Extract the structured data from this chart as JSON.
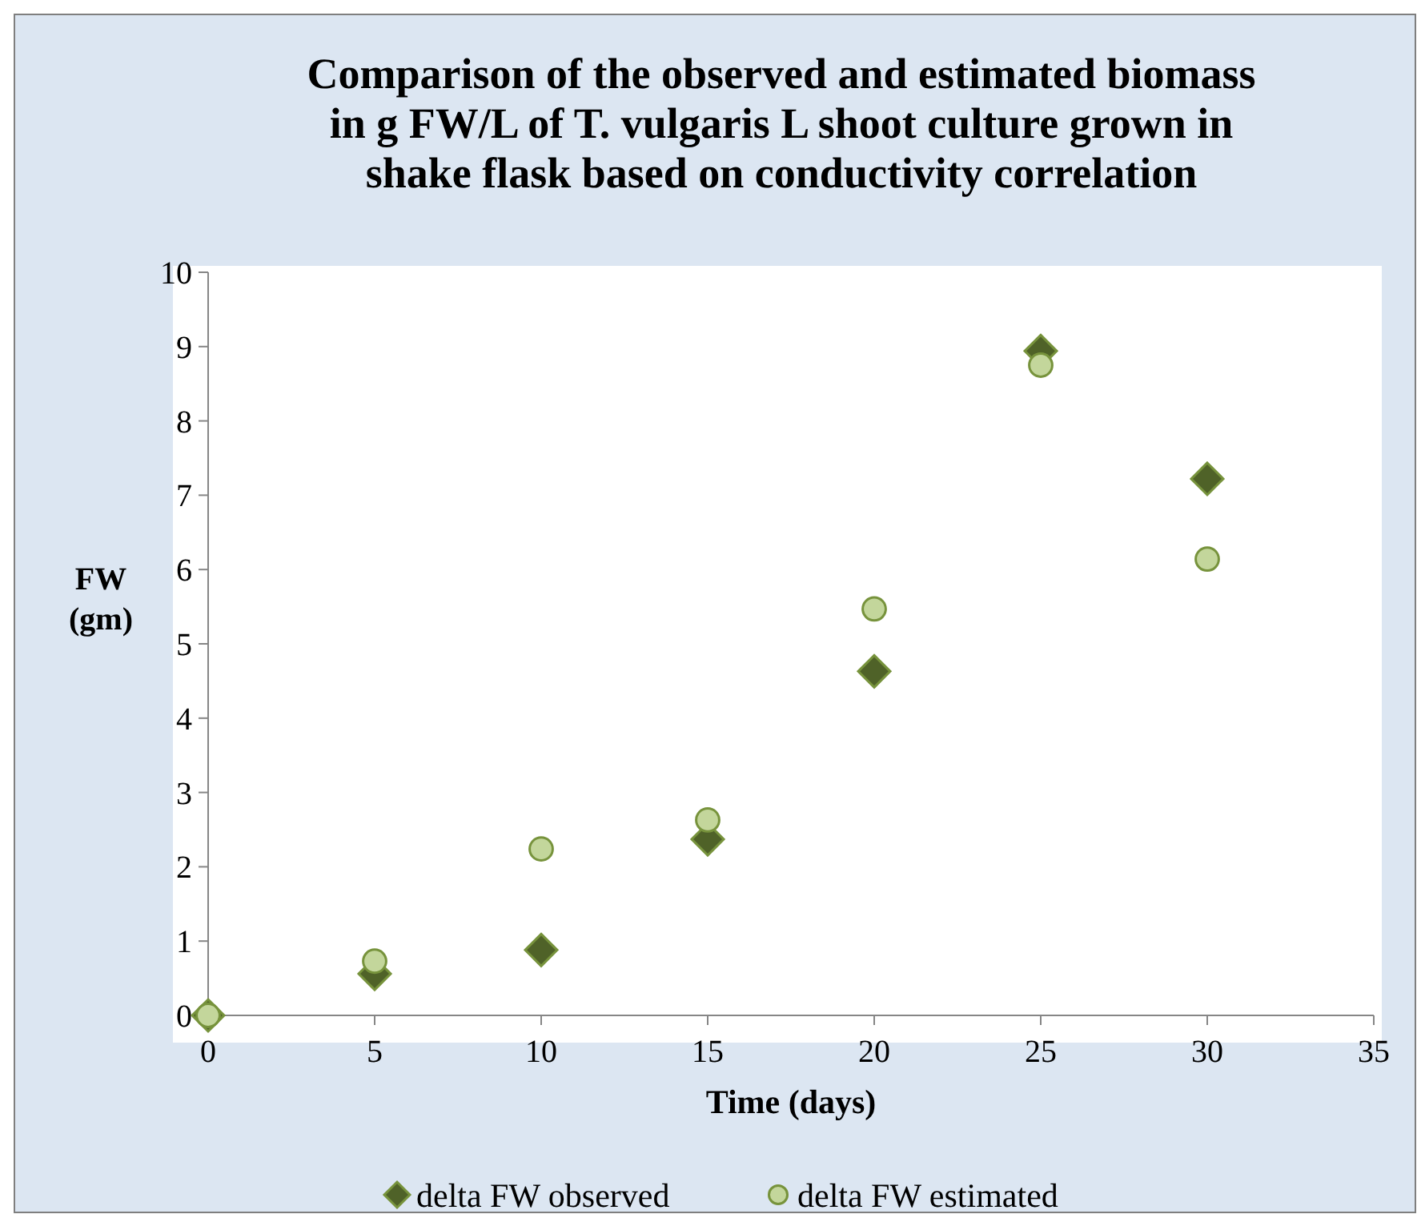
{
  "chart_data": {
    "type": "scatter",
    "title": "Comparison of the observed and estimated biomass in g FW/L of T. vulgaris L shoot culture grown in shake flask based on conductivity correlation",
    "xlabel": "Time (days)",
    "ylabel": "FW (gm)",
    "x": [
      0,
      5,
      10,
      15,
      20,
      25,
      30
    ],
    "series": [
      {
        "name": "delta FW observed",
        "color": "#4f6228",
        "marker": "diamond",
        "values": [
          0,
          0.56,
          0.88,
          2.37,
          4.63,
          8.94,
          7.22
        ]
      },
      {
        "name": "delta FW estimated",
        "color": "#c3d69b",
        "marker": "circle",
        "values": [
          0,
          0.73,
          2.24,
          2.63,
          5.47,
          8.75,
          6.14
        ]
      }
    ],
    "xlim": [
      0,
      35
    ],
    "xticks": [
      0,
      5,
      10,
      15,
      20,
      25,
      30,
      35
    ],
    "ylim": [
      0,
      10
    ],
    "yticks": [
      0,
      1,
      2,
      3,
      4,
      5,
      6,
      7,
      8,
      9,
      10
    ],
    "grid": false,
    "legend": "bottom"
  }
}
